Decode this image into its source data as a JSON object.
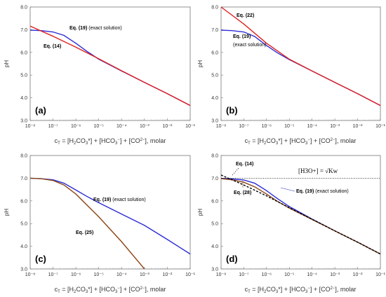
{
  "chart_data": [
    {
      "type": "line",
      "panel_label": "(a)",
      "xlabel": "c_T = [H2CO3*] + [HCO3−] + [CO3 2−], molar",
      "ylabel": "pH",
      "x_scale": "log",
      "xlim": [
        1e-08,
        0.1
      ],
      "ylim": [
        3.0,
        8.0
      ],
      "x_tick_labels": [
        "10⁻⁸",
        "10⁻⁷",
        "10⁻⁶",
        "10⁻⁵",
        "10⁻⁴",
        "10⁻³",
        "10⁻²",
        "10⁻¹"
      ],
      "y_tick_labels": [
        "3.0",
        "4.0",
        "5.0",
        "6.0",
        "7.0",
        "8.0"
      ],
      "series": [
        {
          "name": "Eq. (19) (exact solution)",
          "color": "#2b2bd6",
          "x": [
            1e-08,
            3e-08,
            1e-07,
            3e-07,
            1e-06,
            3e-06,
            1e-05,
            0.0001,
            0.001,
            0.01,
            0.1
          ],
          "y": [
            6.98,
            6.96,
            6.9,
            6.75,
            6.4,
            6.05,
            5.7,
            5.18,
            4.68,
            4.18,
            3.66
          ]
        },
        {
          "name": "Eq. (14)",
          "color": "#e02020",
          "x": [
            1e-08,
            1e-07,
            1e-06,
            1e-05,
            0.0001,
            0.001,
            0.01,
            0.1
          ],
          "y": [
            7.16,
            6.71,
            6.23,
            5.72,
            5.19,
            4.68,
            4.18,
            3.66
          ]
        }
      ],
      "annotations": [
        {
          "text": "Eq. (19)",
          "detail": "(exact solution)"
        },
        {
          "text": "Eq. (14)",
          "detail": ""
        }
      ]
    },
    {
      "type": "line",
      "panel_label": "(b)",
      "xlabel": "c_T = [H2CO3*] + [HCO3−] + [CO3 2−], molar",
      "ylabel": "pH",
      "x_scale": "log",
      "xlim": [
        1e-08,
        0.1
      ],
      "ylim": [
        3.0,
        8.0
      ],
      "x_tick_labels": [
        "10⁻⁸",
        "10⁻⁷",
        "10⁻⁶",
        "10⁻⁵",
        "10⁻⁴",
        "10⁻³",
        "10⁻²",
        "10⁻¹"
      ],
      "y_tick_labels": [
        "3.0",
        "4.0",
        "5.0",
        "6.0",
        "7.0",
        "8.0"
      ],
      "series": [
        {
          "name": "Eq. (19)",
          "color": "#2b2bd6",
          "x": [
            1e-08,
            3e-08,
            1e-07,
            3e-07,
            1e-06,
            3e-06,
            1e-05,
            0.0001,
            0.001,
            0.01,
            0.1
          ],
          "y": [
            6.98,
            6.96,
            6.9,
            6.7,
            6.3,
            5.98,
            5.68,
            5.18,
            4.68,
            4.18,
            3.66
          ]
        },
        {
          "name": "Eq. (22)",
          "color": "#e02020",
          "x": [
            1e-08,
            1e-07,
            1e-06,
            1e-05,
            0.0001,
            0.001,
            0.01,
            0.1
          ],
          "y": [
            8.0,
            7.25,
            6.4,
            5.7,
            5.18,
            4.68,
            4.18,
            3.66
          ]
        }
      ],
      "annotations": [
        {
          "text": "Eq. (22)",
          "detail": ""
        },
        {
          "text": "Eq. (19)",
          "detail": "(exact solution)"
        }
      ]
    },
    {
      "type": "line",
      "panel_label": "(c)",
      "xlabel": "c_T = [H2CO3*] + [HCO3−] + [CO3 2−], molar",
      "ylabel": "pH",
      "x_scale": "log",
      "xlim": [
        1e-08,
        0.1
      ],
      "ylim": [
        3.0,
        8.0
      ],
      "x_tick_labels": [
        "10⁻⁸",
        "10⁻⁷",
        "10⁻⁶",
        "10⁻⁵",
        "10⁻⁴",
        "10⁻³",
        "10⁻²",
        "10⁻¹"
      ],
      "y_tick_labels": [
        "3.0",
        "4.0",
        "5.0",
        "6.0",
        "7.0",
        "8.0"
      ],
      "series": [
        {
          "name": "Eq. (19) (exact solution)",
          "color": "#2b2bd6",
          "x": [
            1e-08,
            3e-08,
            1e-07,
            3e-07,
            1e-06,
            3e-06,
            1e-05,
            0.0001,
            0.001,
            0.01,
            0.1
          ],
          "y": [
            7.0,
            6.98,
            6.93,
            6.78,
            6.48,
            6.2,
            5.92,
            5.42,
            4.92,
            4.3,
            3.66
          ]
        },
        {
          "name": "Eq. (25)",
          "color": "#8b4513",
          "x": [
            1e-08,
            3e-08,
            1e-07,
            3e-07,
            1e-06,
            1e-05,
            0.0001,
            0.001
          ],
          "y": [
            7.0,
            6.98,
            6.9,
            6.7,
            6.3,
            5.3,
            4.2,
            3.0
          ]
        }
      ],
      "annotations": [
        {
          "text": "Eq. (19)",
          "detail": "(exact solution)"
        },
        {
          "text": "Eq. (25)",
          "detail": ""
        }
      ]
    },
    {
      "type": "line",
      "panel_label": "(d)",
      "xlabel": "c_T = [H2CO3*] + [HCO3−] + [CO3 2−], molar",
      "ylabel": "pH",
      "x_scale": "log",
      "xlim": [
        1e-08,
        0.1
      ],
      "ylim": [
        3.0,
        8.0
      ],
      "x_tick_labels": [
        "10⁻⁸",
        "10⁻⁷",
        "10⁻⁶",
        "10⁻⁵",
        "10⁻⁴",
        "10⁻³",
        "10⁻²",
        "10⁻¹"
      ],
      "y_tick_labels": [
        "3.0",
        "4.0",
        "5.0",
        "6.0",
        "7.0",
        "8.0"
      ],
      "series": [
        {
          "name": "Eq. (19) (exact solution)",
          "color": "#2b2bd6",
          "x": [
            1e-08,
            3e-08,
            1e-07,
            3e-07,
            1e-06,
            3e-06,
            1e-05,
            0.0001,
            0.001,
            0.01,
            0.1
          ],
          "y": [
            6.99,
            6.97,
            6.92,
            6.78,
            6.45,
            6.1,
            5.75,
            5.2,
            4.68,
            4.18,
            3.66
          ]
        },
        {
          "name": "Eq. (28)",
          "color": "#8b4513",
          "x": [
            1e-08,
            3e-08,
            1e-07,
            3e-07,
            1e-06,
            3e-06,
            1e-05,
            0.0001,
            0.001,
            0.01,
            0.1
          ],
          "y": [
            6.98,
            6.93,
            6.82,
            6.62,
            6.3,
            5.98,
            5.68,
            5.18,
            4.68,
            4.18,
            3.66
          ]
        },
        {
          "name": "Eq. (14)",
          "color": "#000000",
          "dash": true,
          "x": [
            1e-08,
            1e-07,
            1e-06,
            1e-05,
            0.0001,
            0.001,
            0.01,
            0.1
          ],
          "y": [
            7.14,
            6.7,
            6.22,
            5.7,
            5.19,
            4.68,
            4.18,
            3.66
          ]
        },
        {
          "name": "[H3O+] = √Kw",
          "color": "#000000",
          "dotted": true,
          "x": [
            1e-08,
            0.1
          ],
          "y": [
            7.0,
            7.0
          ]
        }
      ],
      "annotations": [
        {
          "text": "Eq. (14)",
          "detail": ""
        },
        {
          "text": "Eq. (28)",
          "detail": ""
        },
        {
          "text": "Eq. (19)",
          "detail": "(exact solution)"
        },
        {
          "text": "[H3O+] = √Kw",
          "detail": ""
        }
      ]
    }
  ]
}
